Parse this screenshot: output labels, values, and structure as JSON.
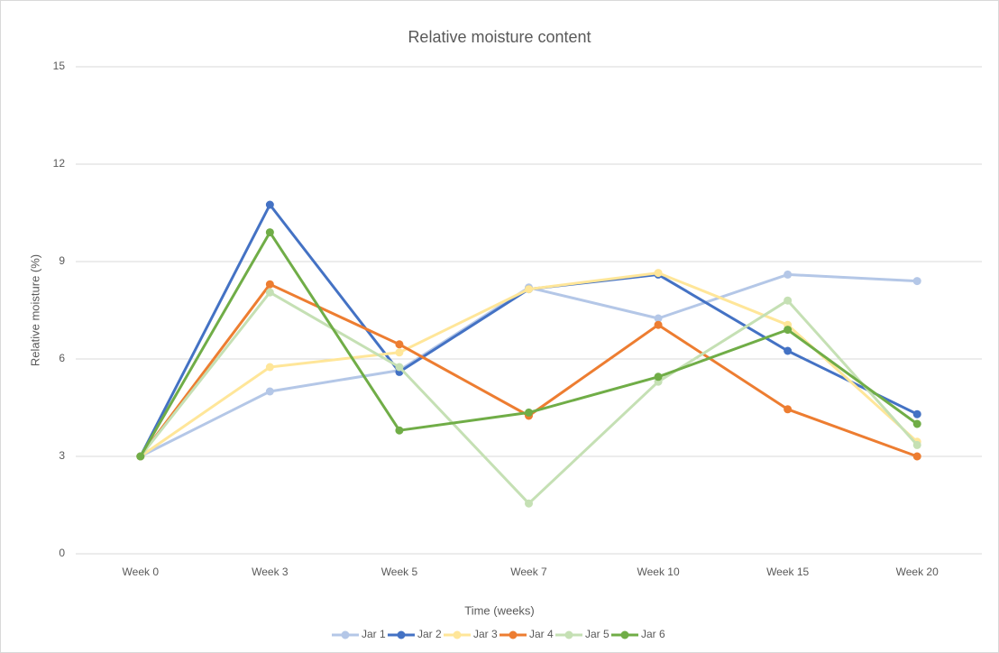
{
  "chart_data": {
    "type": "line",
    "title": "Relative moisture content",
    "x_label": "Time (weeks)",
    "y_label": "Relative moisture (%)",
    "categories": [
      "Week 0",
      "Week 3",
      "Week 5",
      "Week 7",
      "Week 10",
      "Week 15",
      "Week 20"
    ],
    "series": [
      {
        "name": "Jar 1",
        "color": "#b4c7e7",
        "values": [
          3,
          5.0,
          5.65,
          8.2,
          7.25,
          8.6,
          8.4
        ]
      },
      {
        "name": "Jar 2",
        "color": "#4472c4",
        "values": [
          3,
          10.75,
          5.6,
          8.15,
          8.6,
          6.25,
          4.3
        ]
      },
      {
        "name": "Jar 3",
        "color": "#ffe699",
        "values": [
          3,
          5.75,
          6.2,
          8.15,
          8.65,
          7.05,
          3.45
        ]
      },
      {
        "name": "Jar 4",
        "color": "#ed7d31",
        "values": [
          3,
          8.3,
          6.45,
          4.25,
          7.05,
          4.45,
          3.0
        ]
      },
      {
        "name": "Jar 5",
        "color": "#c5e0b4",
        "values": [
          3,
          8.05,
          5.75,
          1.55,
          5.3,
          7.8,
          3.35
        ]
      },
      {
        "name": "Jar 6",
        "color": "#70ad47",
        "values": [
          3,
          9.9,
          3.8,
          4.35,
          5.45,
          6.9,
          4.0
        ]
      }
    ],
    "ylim": [
      0,
      15
    ],
    "yticks": [
      0,
      3,
      6,
      9,
      12,
      15
    ],
    "grid": true,
    "legend": "bottom"
  }
}
